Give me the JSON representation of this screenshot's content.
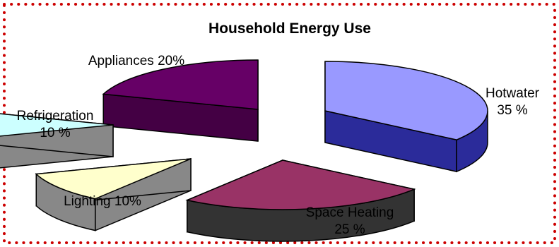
{
  "chart_data": {
    "type": "pie",
    "title": "Household Energy Use",
    "categories": [
      "Hotwater",
      "Space Heating",
      "Lighting",
      "Refrigeration",
      "Appliances"
    ],
    "values": [
      35,
      25,
      10,
      10,
      20
    ],
    "labels": [
      [
        "Hotwater",
        "35 %"
      ],
      [
        "Space Heating",
        "25 %"
      ],
      [
        "Lighting 10%"
      ],
      [
        "Refrigeration",
        "10 %"
      ],
      [
        "Appliances 20%"
      ]
    ],
    "colors": {
      "Hotwater": {
        "top": "#9999ff",
        "side": "#2b2b9a"
      },
      "Space Heating": {
        "top": "#993366",
        "side": "#333333"
      },
      "Lighting": {
        "top": "#ffffcc",
        "side": "#888888"
      },
      "Refrigeration": {
        "top": "#ccffff",
        "side": "#888888"
      },
      "Appliances": {
        "top": "#660066",
        "side": "#440044"
      }
    },
    "legend": "none",
    "style": "3d-exploded",
    "border_color": "#cc0000"
  }
}
